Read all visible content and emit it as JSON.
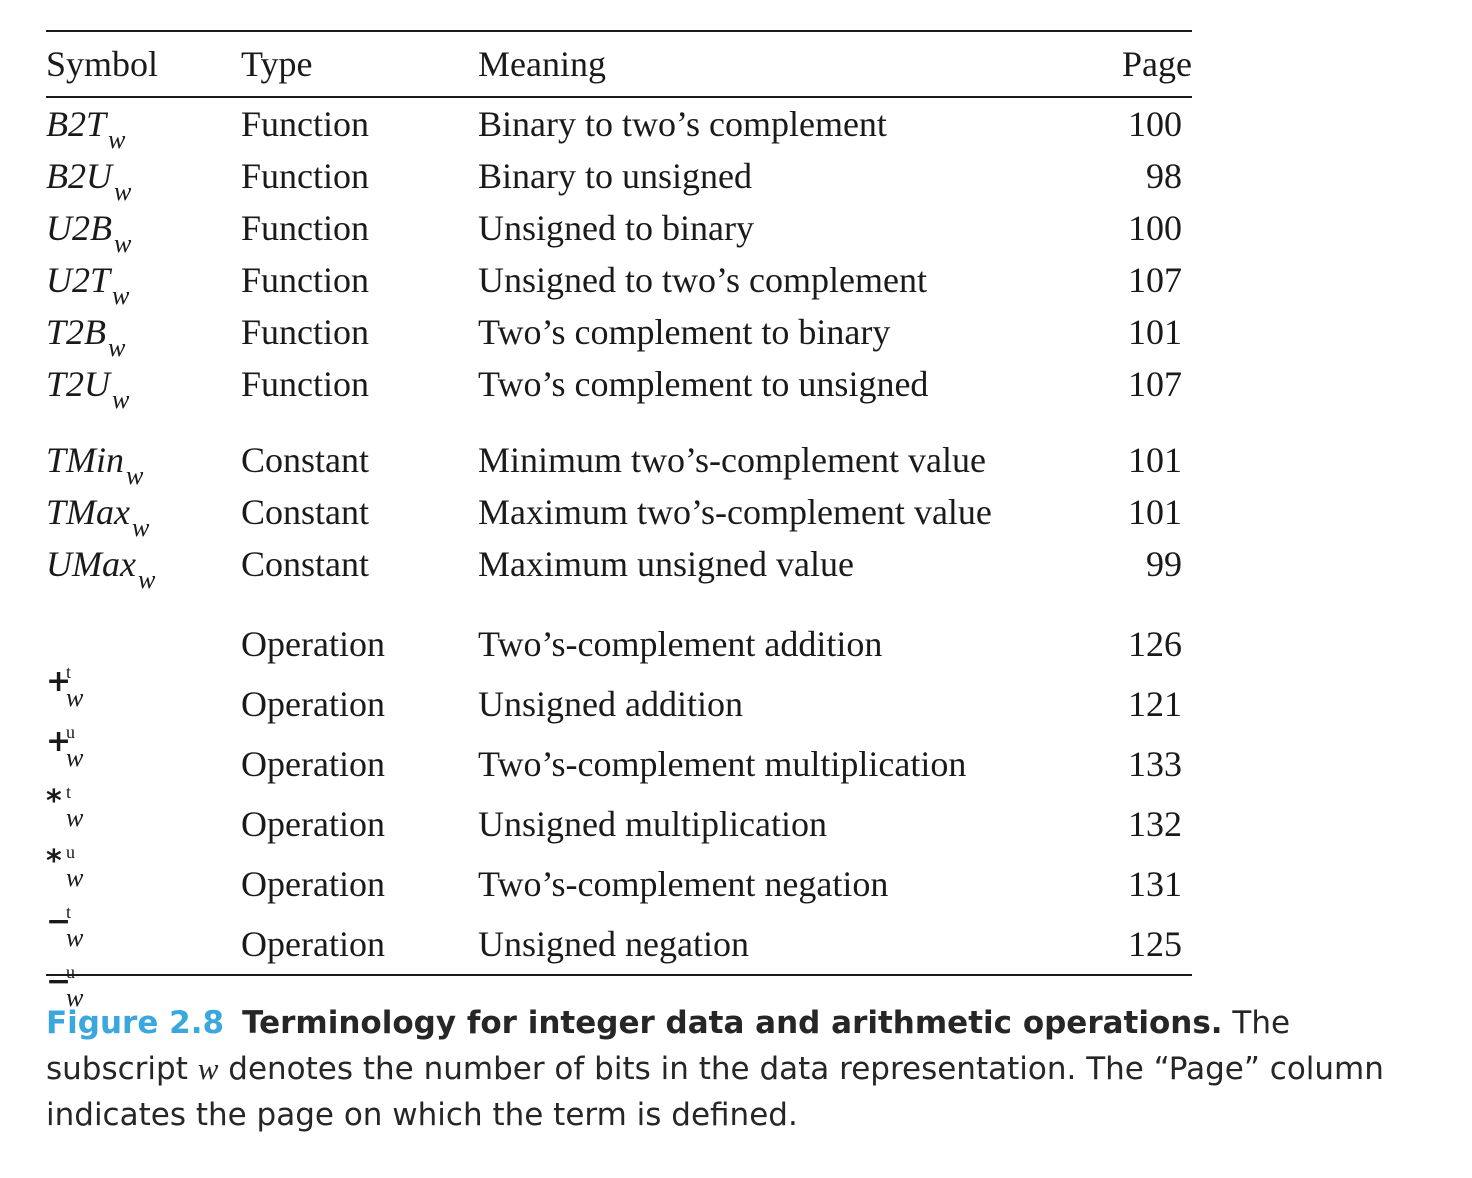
{
  "table": {
    "headers": {
      "symbol": "Symbol",
      "type": "Type",
      "meaning": "Meaning",
      "page": "Page"
    },
    "groups": [
      [
        {
          "symbol": "B2T",
          "sub": "w",
          "type": "Function",
          "meaning": "Binary to two’s complement",
          "page": "100"
        },
        {
          "symbol": "B2U",
          "sub": "w",
          "type": "Function",
          "meaning": "Binary to unsigned",
          "page": "98"
        },
        {
          "symbol": "U2B",
          "sub": "w",
          "type": "Function",
          "meaning": "Unsigned to binary",
          "page": "100"
        },
        {
          "symbol": "U2T",
          "sub": "w",
          "type": "Function",
          "meaning": "Unsigned to two’s complement",
          "page": "107"
        },
        {
          "symbol": "T2B",
          "sub": "w",
          "type": "Function",
          "meaning": "Two’s complement to binary",
          "page": "101"
        },
        {
          "symbol": "T2U",
          "sub": "w",
          "type": "Function",
          "meaning": "Two’s complement to unsigned",
          "page": "107"
        }
      ],
      [
        {
          "symbol": "TMin",
          "sub": "w",
          "type": "Constant",
          "meaning": "Minimum two’s-complement value",
          "page": "101"
        },
        {
          "symbol": "TMax",
          "sub": "w",
          "type": "Constant",
          "meaning": "Maximum two’s-complement value",
          "page": "101"
        },
        {
          "symbol": "UMax",
          "sub": "w",
          "type": "Constant",
          "meaning": "Maximum unsigned value",
          "page": "99"
        }
      ],
      [
        {
          "op": "+",
          "sup": "t",
          "sub": "w",
          "type": "Operation",
          "meaning": "Two’s-complement addition",
          "page": "126"
        },
        {
          "op": "+",
          "sup": "u",
          "sub": "w",
          "type": "Operation",
          "meaning": "Unsigned addition",
          "page": "121"
        },
        {
          "op": "*",
          "sup": "t",
          "sub": "w",
          "type": "Operation",
          "meaning": "Two’s-complement multiplication",
          "page": "133"
        },
        {
          "op": "*",
          "sup": "u",
          "sub": "w",
          "type": "Operation",
          "meaning": "Unsigned multiplication",
          "page": "132"
        },
        {
          "op": "−",
          "sup": "t",
          "sub": "w",
          "type": "Operation",
          "meaning": "Two’s-complement negation",
          "page": "131"
        },
        {
          "op": "−",
          "sup": "u",
          "sub": "w",
          "type": "Operation",
          "meaning": "Unsigned negation",
          "page": "125"
        }
      ]
    ]
  },
  "caption": {
    "label": "Figure 2.8",
    "title": "Terminology for integer data and arithmetic operations.",
    "text_1": " The subscript ",
    "w": "w",
    "text_2": " denotes the number of bits in the data representation. The “Page” column indicates the page on which the term is defined."
  },
  "colors": {
    "figure_label": "#3aa7de",
    "text": "#1a1a1a"
  }
}
